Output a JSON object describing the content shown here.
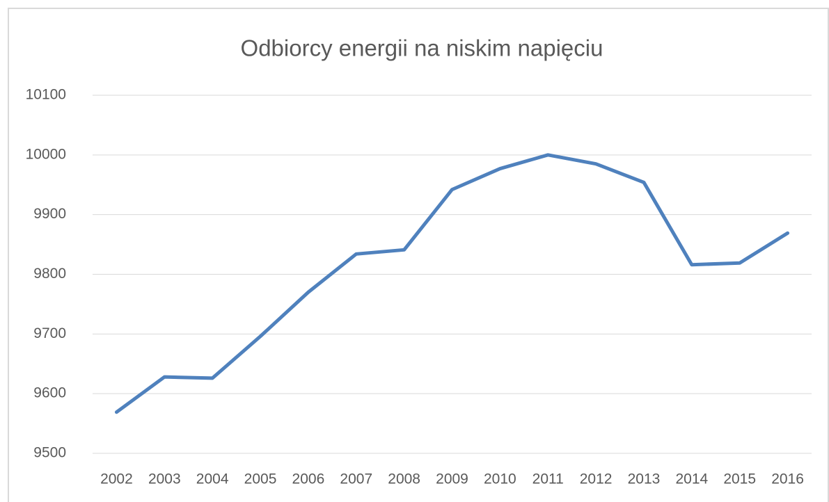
{
  "chart_data": {
    "type": "line",
    "title": "Odbiorcy energii na niskim napięciu",
    "categories": [
      "2002",
      "2003",
      "2004",
      "2005",
      "2006",
      "2007",
      "2008",
      "2009",
      "2010",
      "2011",
      "2012",
      "2013",
      "2014",
      "2015",
      "2016"
    ],
    "values": [
      9569,
      9628,
      9626,
      9696,
      9770,
      9834,
      9841,
      9942,
      9977,
      10000,
      9985,
      9954,
      9816,
      9819,
      9869
    ],
    "color": "#4f81bd",
    "ylim": [
      9500,
      10100
    ],
    "yticks": [
      9500,
      9600,
      9700,
      9800,
      9900,
      10000,
      10100
    ],
    "grid": true
  }
}
